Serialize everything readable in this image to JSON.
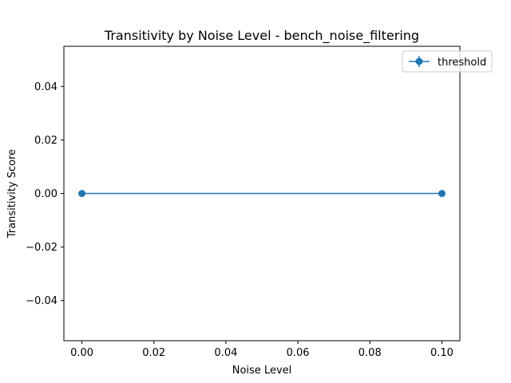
{
  "chart_data": {
    "type": "line",
    "title": "Transitivity by Noise Level - bench_noise_filtering",
    "xlabel": "Noise Level",
    "ylabel": "Transitivity Score",
    "xlim": [
      -0.005,
      0.105
    ],
    "ylim": [
      -0.055,
      0.055
    ],
    "xticks": [
      0.0,
      0.02,
      0.04,
      0.06,
      0.08,
      0.1
    ],
    "xtick_labels": [
      "0.00",
      "0.02",
      "0.04",
      "0.06",
      "0.08",
      "0.10"
    ],
    "yticks": [
      -0.04,
      -0.02,
      0.0,
      0.02,
      0.04
    ],
    "ytick_labels": [
      "−0.04",
      "−0.02",
      "0.00",
      "0.02",
      "0.04"
    ],
    "grid": false,
    "legend_position": "top-right",
    "series": [
      {
        "name": "threshold",
        "color": "#1f77b4",
        "marker": "circle",
        "error_bars": true,
        "x": [
          0.0,
          0.1
        ],
        "y": [
          0.0,
          0.0
        ]
      }
    ]
  }
}
